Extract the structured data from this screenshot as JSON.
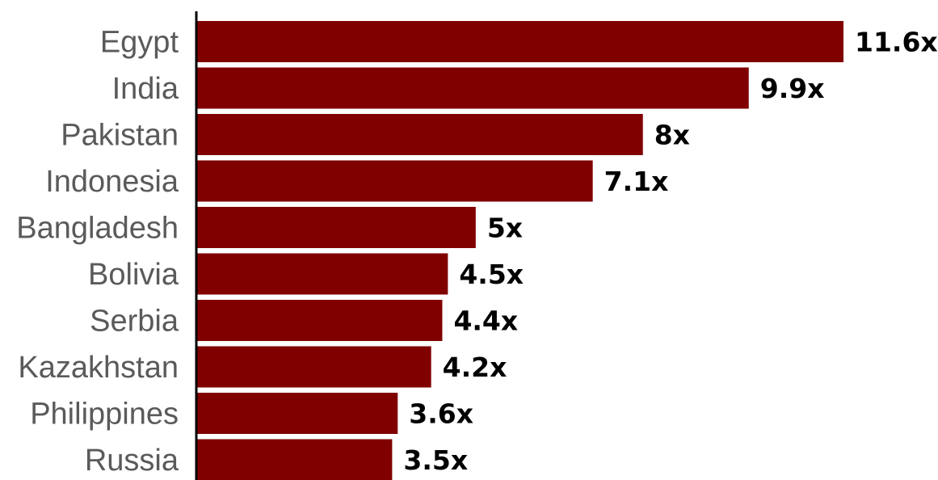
{
  "chart_data": {
    "type": "bar",
    "orientation": "horizontal",
    "title": "",
    "xlabel": "",
    "ylabel": "",
    "categories": [
      "Egypt",
      "India",
      "Pakistan",
      "Indonesia",
      "Bangladesh",
      "Bolivia",
      "Serbia",
      "Kazakhstan",
      "Philippines",
      "Russia"
    ],
    "values": [
      11.6,
      9.9,
      8,
      7.1,
      5,
      4.5,
      4.4,
      4.2,
      3.6,
      3.5
    ],
    "value_labels": [
      "11.6x",
      "9.9x",
      "8x",
      "7.1x",
      "5x",
      "4.5x",
      "4.4x",
      "4.2x",
      "3.6x",
      "3.5x"
    ],
    "xlim": [
      0,
      11.6
    ],
    "grid": false,
    "colors": {
      "bar": "#800000",
      "axis": "#000000",
      "category_text": "#5a5a5a",
      "value_text": "#000000"
    }
  }
}
